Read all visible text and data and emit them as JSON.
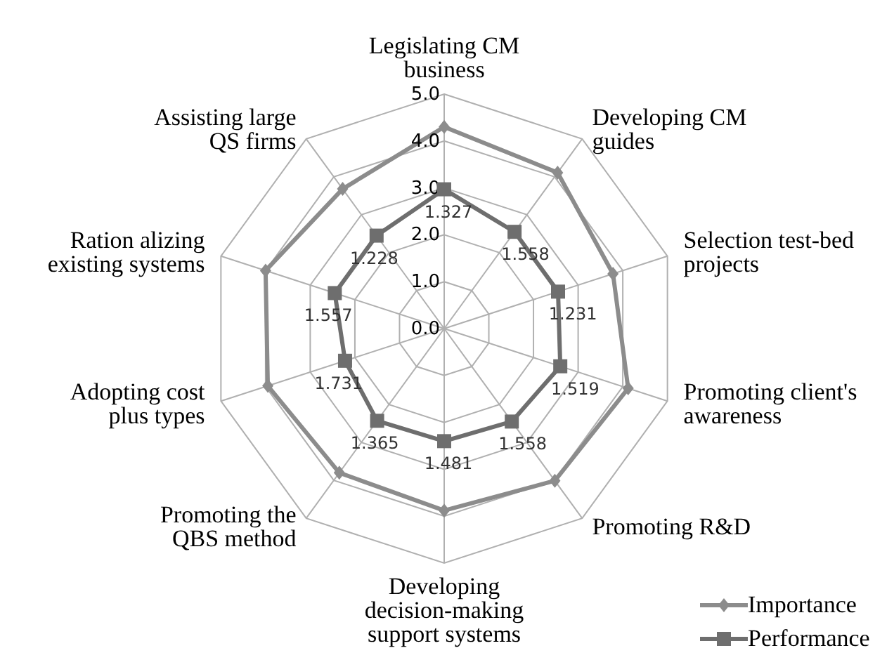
{
  "chart_data": {
    "type": "radar",
    "categories": [
      "Legislating CM\nbusiness",
      "Developing CM\nguides",
      "Selection test-bed\nprojects",
      "Promoting client's\nawareness",
      "Promoting R&D",
      "Developing\ndecision-making\nsupport systems",
      "Promoting the\nQBS method",
      "Adopting cost\nplus types",
      "Ration alizing\nexisting systems",
      "Assisting large\nQS firms"
    ],
    "series": [
      {
        "name": "Importance",
        "color": "#8c8c8c",
        "marker": "diamond",
        "values": [
          4.3,
          4.11,
          3.78,
          4.12,
          4.01,
          3.88,
          3.8,
          3.95,
          4.0,
          3.68
        ]
      },
      {
        "name": "Performance",
        "color": "#6e6e6e",
        "marker": "square",
        "values": [
          2.97,
          2.55,
          2.55,
          2.6,
          2.45,
          2.4,
          2.43,
          2.22,
          2.45,
          2.45
        ]
      }
    ],
    "ylim": [
      0,
      5
    ],
    "yticks": [
      {
        "value": 0,
        "label": "0.0"
      },
      {
        "value": 1,
        "label": "1.0"
      },
      {
        "value": 2,
        "label": "2.0"
      },
      {
        "value": 3,
        "label": "3.0"
      },
      {
        "value": 4,
        "label": "4.0"
      },
      {
        "value": 5,
        "label": "5.0"
      }
    ],
    "grid": true,
    "legend": "bottom right",
    "annotations": [
      {
        "text": "1.327",
        "x": "Legislating CM\nbusiness"
      },
      {
        "text": "1.558",
        "x": "Developing CM\nguides"
      },
      {
        "text": "1.231",
        "x": "Selection test-bed\nprojects"
      },
      {
        "text": "1.519",
        "x": "Promoting client's\nawareness"
      },
      {
        "text": "1.558",
        "x": "Promoting R&D"
      },
      {
        "text": "1.481",
        "x": "Developing\ndecision-making\nsupport systems"
      },
      {
        "text": "1.365",
        "x": "Promoting the\nQBS method"
      },
      {
        "text": "1.731",
        "x": "Adopting cost\nplus types"
      },
      {
        "text": "1.557",
        "x": "Ration alizing\nexisting systems"
      },
      {
        "text": "1.228",
        "x": "Assisting large\nQS firms"
      }
    ]
  }
}
